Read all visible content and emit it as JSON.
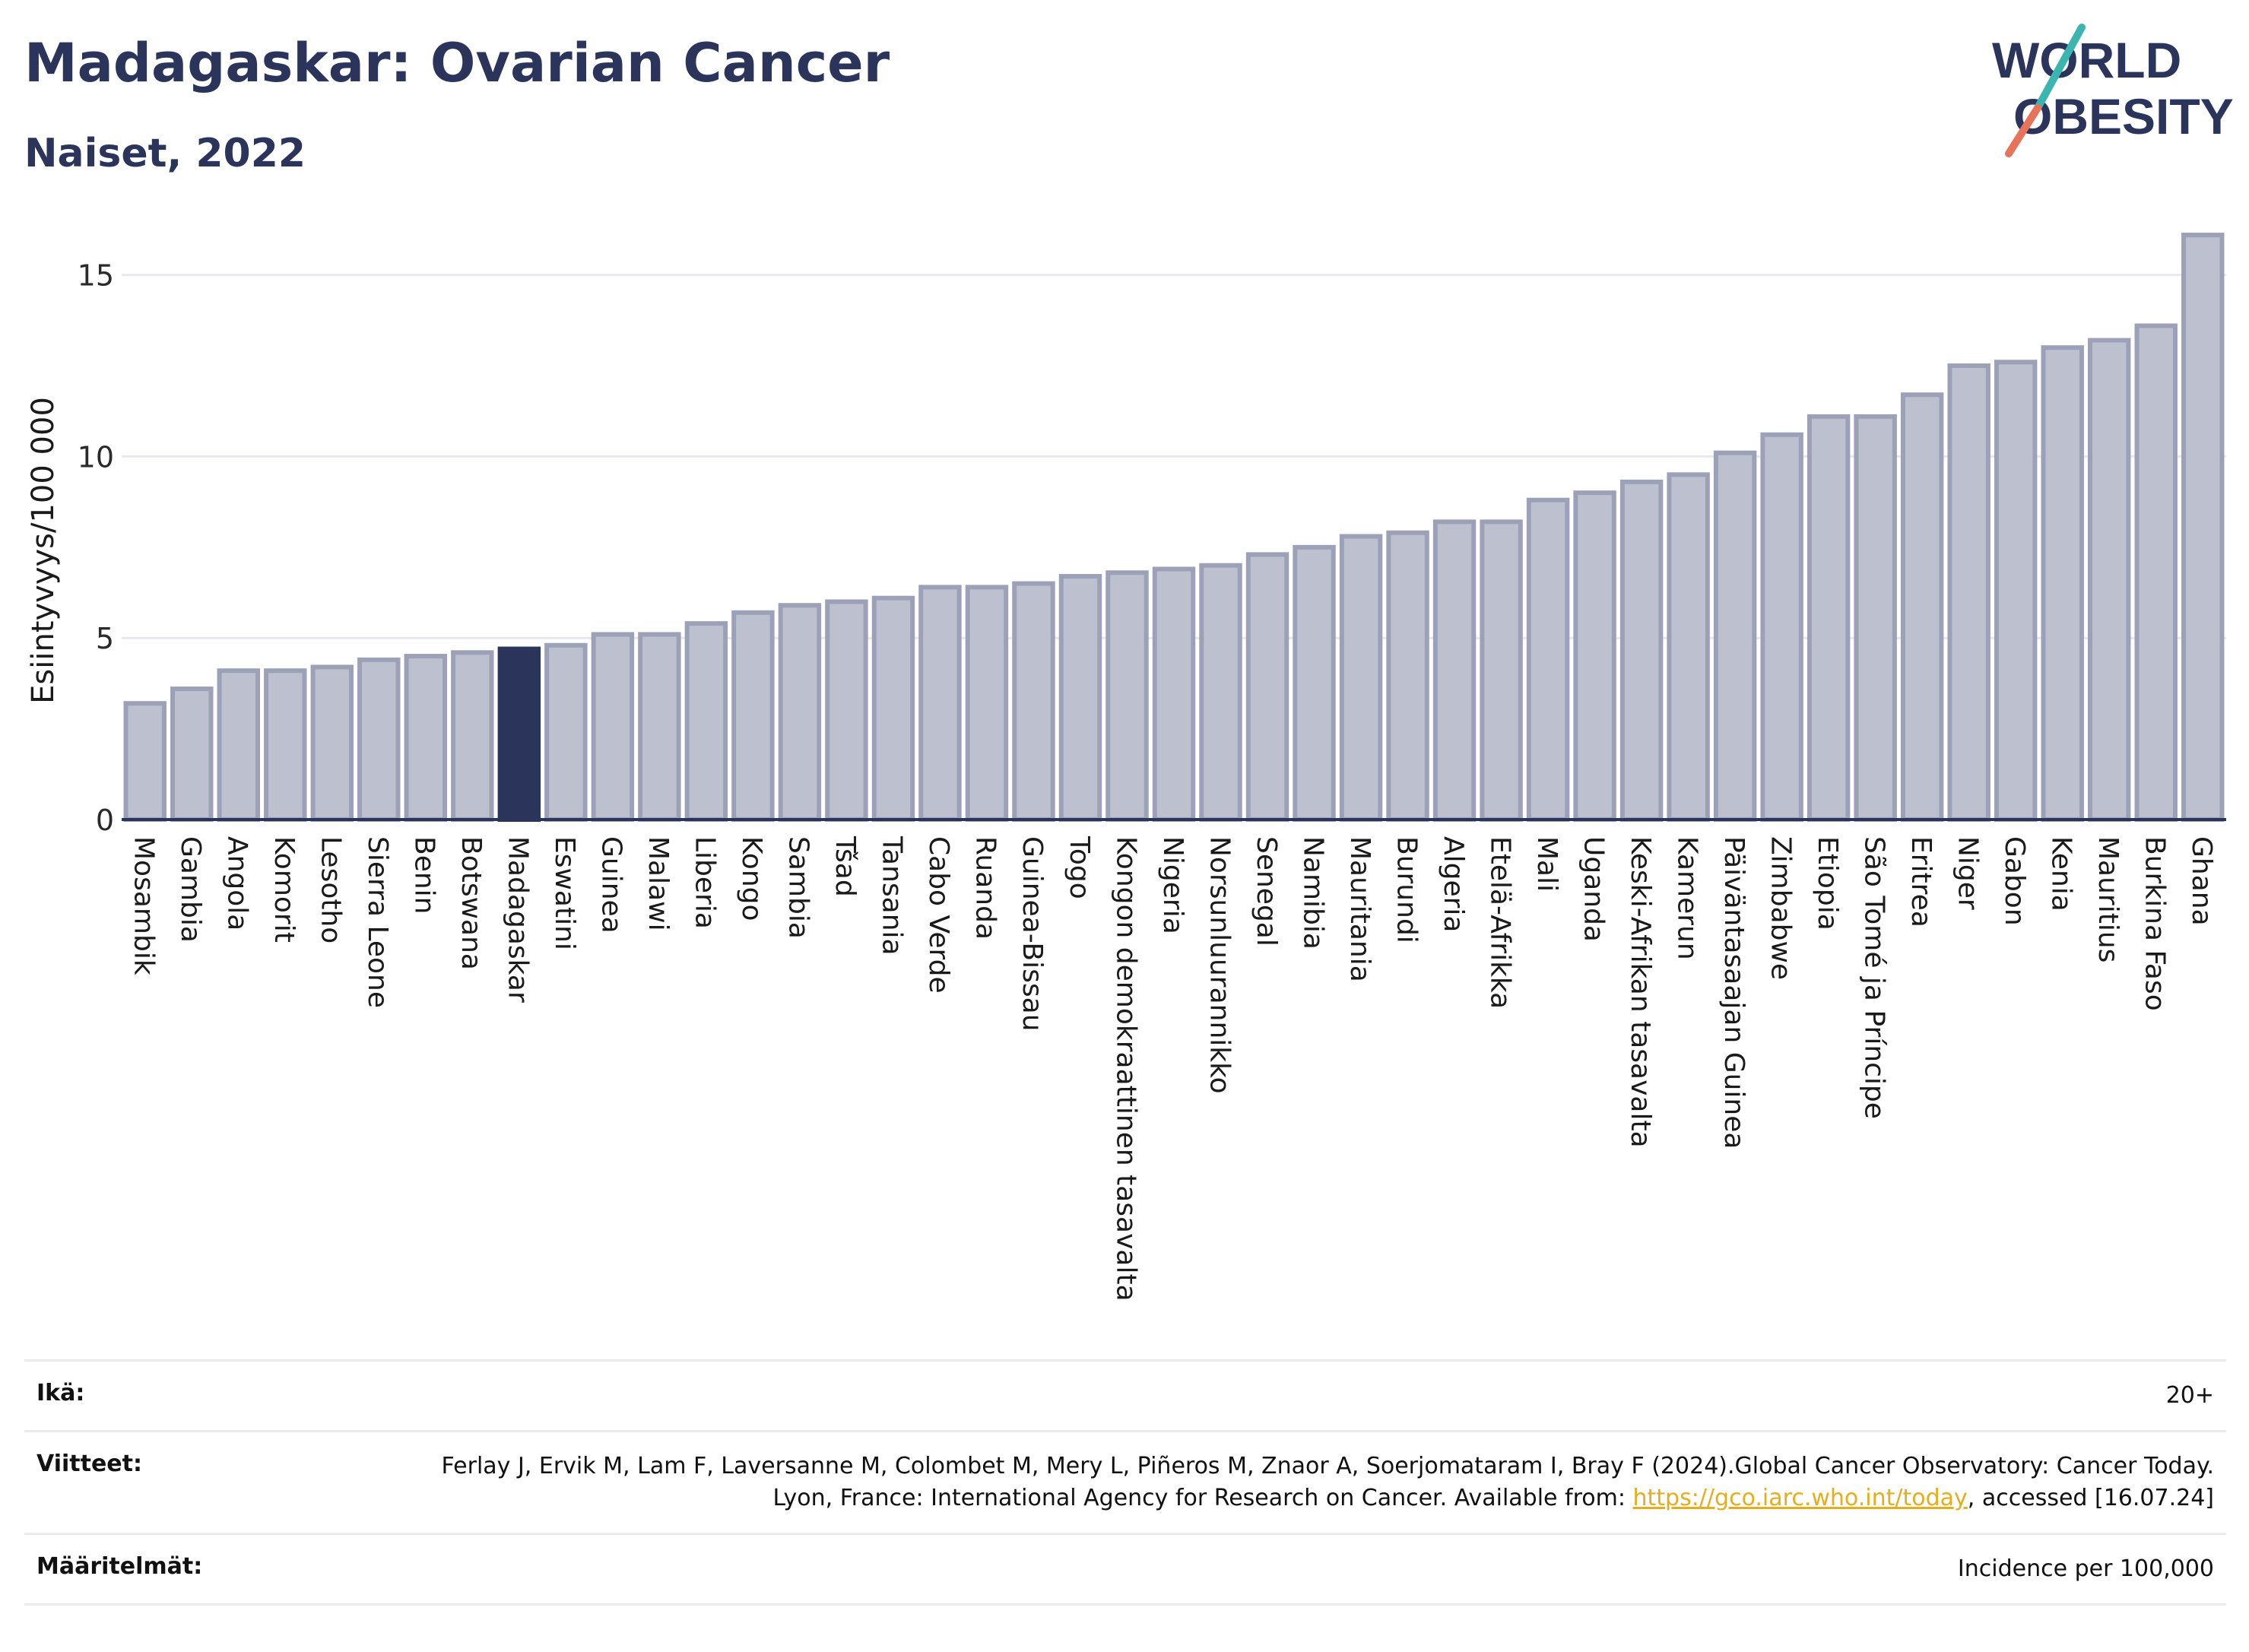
{
  "header": {
    "title": "Madagaskar: Ovarian Cancer",
    "subtitle": "Naiset, 2022",
    "logo_text_top": "WORLD",
    "logo_text_bottom": "OBESITY"
  },
  "colors": {
    "bar": "#bdc1cf",
    "bar_border": "#9ca1b8",
    "highlight": "#2b355c",
    "text": "#2b355c",
    "grid": "#e6e8ee",
    "logo_teal": "#3ab5b0",
    "logo_coral": "#e8735a"
  },
  "chart_data": {
    "type": "bar",
    "ylabel": "Esiintyvyys/100 000",
    "ylim": [
      0,
      16.5
    ],
    "yticks": [
      0,
      5,
      10,
      15
    ],
    "grid": true,
    "highlight": "Madagaskar",
    "categories": [
      "Mosambik",
      "Gambia",
      "Angola",
      "Komorit",
      "Lesotho",
      "Sierra Leone",
      "Benin",
      "Botswana",
      "Madagaskar",
      "Eswatini",
      "Guinea",
      "Malawi",
      "Liberia",
      "Kongo",
      "Sambia",
      "Tšad",
      "Tansania",
      "Cabo Verde",
      "Ruanda",
      "Guinea-Bissau",
      "Togo",
      "Kongon demokraattinen tasavalta",
      "Nigeria",
      "Norsunluurannikko",
      "Senegal",
      "Namibia",
      "Mauritania",
      "Burundi",
      "Algeria",
      "Etelä-Afrikka",
      "Mali",
      "Uganda",
      "Keski-Afrikan tasavalta",
      "Kamerun",
      "Päiväntasaajan Guinea",
      "Zimbabwe",
      "Etiopia",
      "São Tomé ja Príncipe",
      "Eritrea",
      "Niger",
      "Gabon",
      "Kenia",
      "Mauritius",
      "Burkina Faso",
      "Ghana"
    ],
    "values": [
      3.2,
      3.6,
      4.1,
      4.1,
      4.2,
      4.4,
      4.5,
      4.6,
      4.7,
      4.8,
      5.1,
      5.1,
      5.4,
      5.7,
      5.9,
      6.0,
      6.1,
      6.4,
      6.4,
      6.5,
      6.7,
      6.8,
      6.9,
      7.0,
      7.3,
      7.5,
      7.8,
      7.9,
      8.2,
      8.2,
      8.8,
      9.0,
      9.3,
      9.5,
      10.1,
      10.6,
      11.1,
      11.1,
      11.7,
      12.5,
      12.6,
      13.0,
      13.2,
      13.6,
      16.1
    ]
  },
  "footer": {
    "age_label": "Ikä:",
    "age_value": "20+",
    "refs_label": "Viitteet:",
    "refs_text_before": "Ferlay J, Ervik M, Lam F, Laversanne M, Colombet M, Mery L, Piñeros M, Znaor A, Soerjomataram I, Bray F (2024).Global Cancer Observatory: Cancer Today. Lyon, France: International Agency for Research on Cancer. Available from: ",
    "refs_link": "https://gco.iarc.who.int/today",
    "refs_text_after": ", accessed [16.07.24]",
    "defs_label": "Määritelmät:",
    "defs_value": "Incidence per 100,000"
  }
}
